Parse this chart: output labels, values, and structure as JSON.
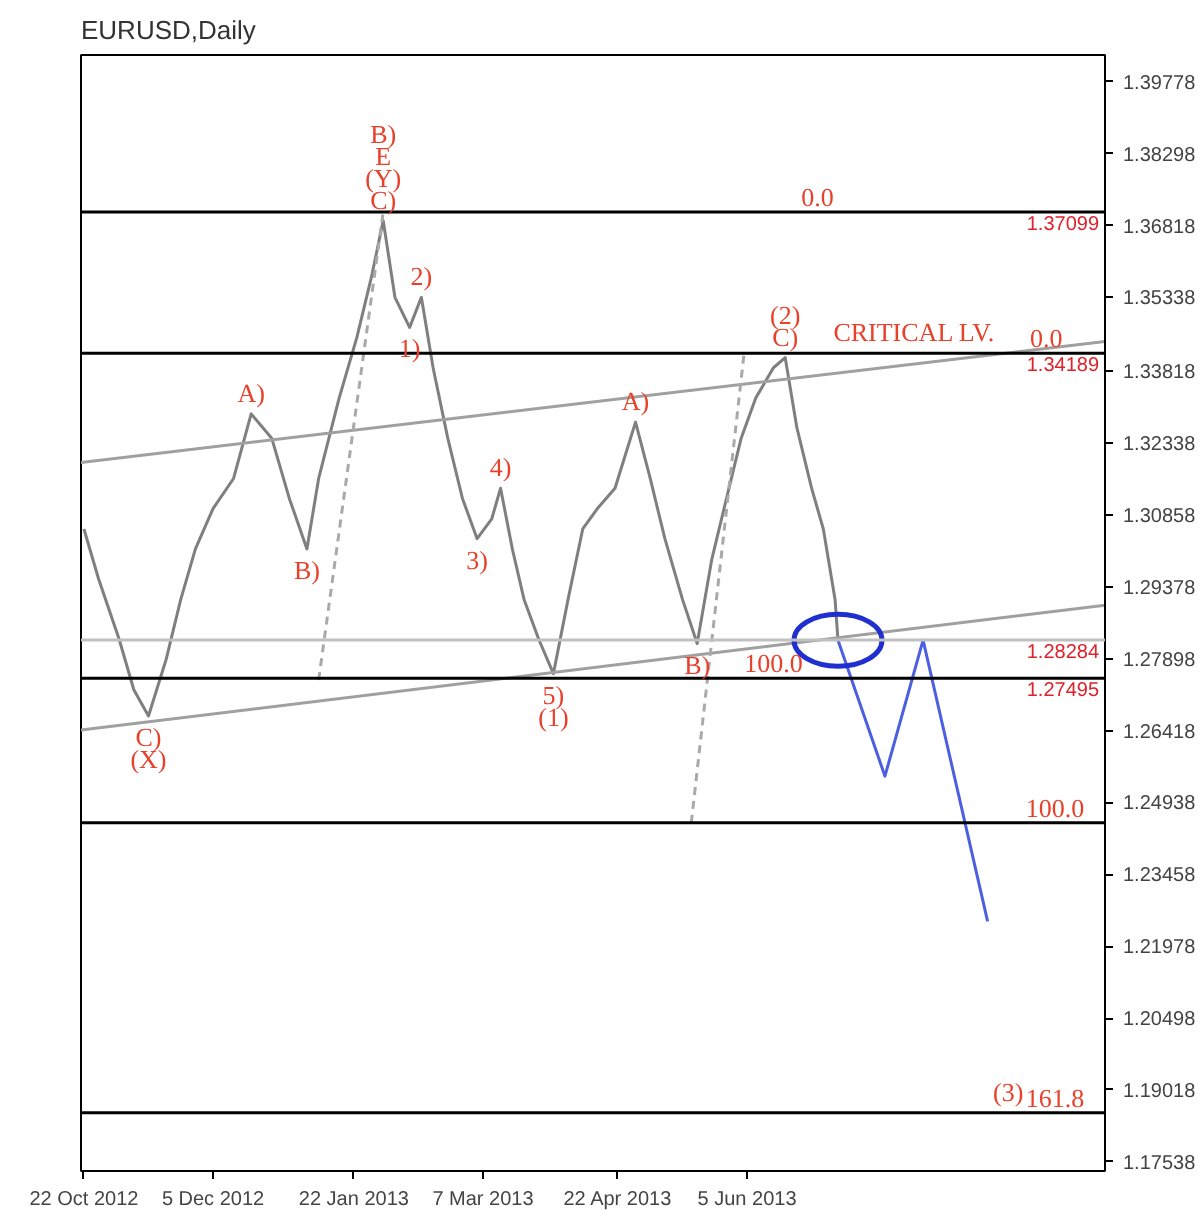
{
  "chart_data": {
    "type": "line",
    "title": "EURUSD,Daily",
    "xlim": [
      "2012-10-21",
      "2013-10-05"
    ],
    "xticks": [
      {
        "value": "2012-10-22",
        "label": "22 Oct 2012"
      },
      {
        "value": "2012-12-05",
        "label": "5 Dec 2012"
      },
      {
        "value": "2013-01-22",
        "label": "22 Jan 2013"
      },
      {
        "value": "2013-03-07",
        "label": "7 Mar 2013"
      },
      {
        "value": "2013-04-22",
        "label": "22 Apr 2013"
      },
      {
        "value": "2013-06-05",
        "label": "5 Jun 2013"
      }
    ],
    "ylim": [
      1.1735,
      1.4033
    ],
    "yticks": [
      1.39778,
      1.38298,
      1.36818,
      1.35338,
      1.33818,
      1.32338,
      1.30858,
      1.29378,
      1.27898,
      1.26418,
      1.24938,
      1.23458,
      1.21978,
      1.20498,
      1.19018,
      1.17538
    ],
    "marker": "none",
    "line_style": "solid",
    "series": [
      {
        "color": "#7f7f7f",
        "x": [
          "2012-10-22",
          "2012-10-27",
          "2012-11-03",
          "2012-11-08",
          "2012-11-13",
          "2012-11-19",
          "2012-11-24",
          "2012-11-29",
          "2012-12-05",
          "2012-12-12",
          "2012-12-18",
          "2012-12-25",
          "2012-12-31",
          "2013-01-06",
          "2013-01-10",
          "2013-01-17",
          "2013-01-23",
          "2013-01-28",
          "2013-02-01",
          "2013-02-05",
          "2013-02-10",
          "2013-02-14",
          "2013-02-18",
          "2013-02-23",
          "2013-02-28",
          "2013-03-05",
          "2013-03-10",
          "2013-03-13",
          "2013-03-17",
          "2013-03-21",
          "2013-03-26",
          "2013-03-31",
          "2013-04-05",
          "2013-04-10",
          "2013-04-15",
          "2013-04-21",
          "2013-04-28",
          "2013-05-03",
          "2013-05-08",
          "2013-05-14",
          "2013-05-19",
          "2013-05-24",
          "2013-05-29",
          "2013-06-03",
          "2013-06-08",
          "2013-06-14",
          "2013-06-18",
          "2013-06-22",
          "2013-06-27",
          "2013-07-01",
          "2013-07-05",
          "2013-07-06"
        ],
        "values": [
          1.3057,
          1.2954,
          1.283,
          1.2726,
          1.2672,
          1.2788,
          1.2912,
          1.3016,
          1.3099,
          1.3161,
          1.3294,
          1.3244,
          1.312,
          1.3016,
          1.3161,
          1.3327,
          1.3451,
          1.3576,
          1.3692,
          1.3534,
          1.3472,
          1.3534,
          1.3389,
          1.3244,
          1.312,
          1.3037,
          1.3078,
          1.3141,
          1.3016,
          1.2912,
          1.283,
          1.2759,
          1.2912,
          1.3057,
          1.3099,
          1.3141,
          1.3277,
          1.3161,
          1.3037,
          1.2912,
          1.2821,
          1.2995,
          1.312,
          1.3244,
          1.3327,
          1.3389,
          1.341,
          1.3265,
          1.3141,
          1.3057,
          1.2912,
          1.2828
        ]
      },
      {
        "color": "#a0a0a0",
        "x": [
          "2012-10-21",
          "2013-10-05"
        ],
        "values": [
          1.3194,
          1.3443
        ]
      },
      {
        "color": "#a0a0a0",
        "x": [
          "2012-10-21",
          "2013-10-05"
        ],
        "values": [
          1.2643,
          1.29
        ]
      },
      {
        "color": "#a9a9a9",
        "line_style": "dashed",
        "x": [
          "2013-01-10",
          "2013-02-01"
        ],
        "values": [
          1.2746,
          1.371
        ]
      },
      {
        "color": "#a9a9a9",
        "line_style": "dashed",
        "x": [
          "2013-05-17",
          "2013-06-04"
        ],
        "values": [
          1.2452,
          1.3419
        ]
      },
      {
        "color": "#4b5fe0",
        "x": [
          "2013-07-06",
          "2013-07-22",
          "2013-08-04",
          "2013-08-26"
        ],
        "values": [
          1.2828,
          1.2548,
          1.2828,
          1.2249
        ]
      }
    ],
    "ref_lines": [
      {
        "axis": "y",
        "value": 1.37099,
        "label": "1.37099",
        "color": "#000000"
      },
      {
        "axis": "y",
        "value": 1.34189,
        "label": "1.34189",
        "color": "#000000"
      },
      {
        "axis": "y",
        "value": 1.27495,
        "label": "1.27495",
        "color": "#000000"
      },
      {
        "axis": "y",
        "value": 1.28284,
        "label": "1.28284",
        "color": "#c0c0c0"
      },
      {
        "axis": "y",
        "value": 1.2452,
        "label": null,
        "color": "#000000"
      },
      {
        "axis": "y",
        "value": 1.1855,
        "label": null,
        "color": "#000000"
      }
    ],
    "annotations": [
      {
        "text": "B)",
        "x": "2013-02-01",
        "y": 1.3692
      },
      {
        "text": "E",
        "x": "2013-02-01",
        "y": 1.3692
      },
      {
        "text": "(Y)",
        "x": "2013-02-01",
        "y": 1.3692
      },
      {
        "text": "C)",
        "x": "2013-02-01",
        "y": 1.3692
      },
      {
        "text": "A)",
        "x": "2012-12-18",
        "y": 1.3294
      },
      {
        "text": "B)",
        "x": "2013-01-06",
        "y": 1.3016
      },
      {
        "text": "1)",
        "x": "2013-02-10",
        "y": 1.3472
      },
      {
        "text": "2)",
        "x": "2013-02-14",
        "y": 1.3534
      },
      {
        "text": "3)",
        "x": "2013-03-05",
        "y": 1.3037
      },
      {
        "text": "4)",
        "x": "2013-03-13",
        "y": 1.3141
      },
      {
        "text": "5)",
        "x": "2013-03-31",
        "y": 1.2759
      },
      {
        "text": "(1)",
        "x": "2013-03-31",
        "y": 1.2759
      },
      {
        "text": "A)",
        "x": "2013-04-28",
        "y": 1.3277
      },
      {
        "text": "B)",
        "x": "2013-05-19",
        "y": 1.2821
      },
      {
        "text": "(2)",
        "x": "2013-06-18",
        "y": 1.341
      },
      {
        "text": "C)",
        "x": "2013-06-18",
        "y": 1.341
      },
      {
        "text": "C)",
        "x": "2012-11-13",
        "y": 1.2672
      },
      {
        "text": "(X)",
        "x": "2012-11-13",
        "y": 1.2672
      },
      {
        "text": "(3)",
        "x": "2013-09-02",
        "y": 1.1855
      },
      {
        "text": "161.8",
        "x": "2013-09-18",
        "y": 1.1855
      },
      {
        "text": "100.0",
        "x": "2013-09-18",
        "y": 1.2452
      },
      {
        "text": "0.0",
        "x": "2013-06-29",
        "y": 1.37099
      },
      {
        "text": "CRITICAL LV.",
        "x": "2013-08-01",
        "y": 1.34189
      },
      {
        "text": "0.0",
        "x": "2013-09-15",
        "y": 1.34189
      },
      {
        "text": "100.0",
        "x": "2013-06-14",
        "y": 1.27495
      }
    ]
  }
}
